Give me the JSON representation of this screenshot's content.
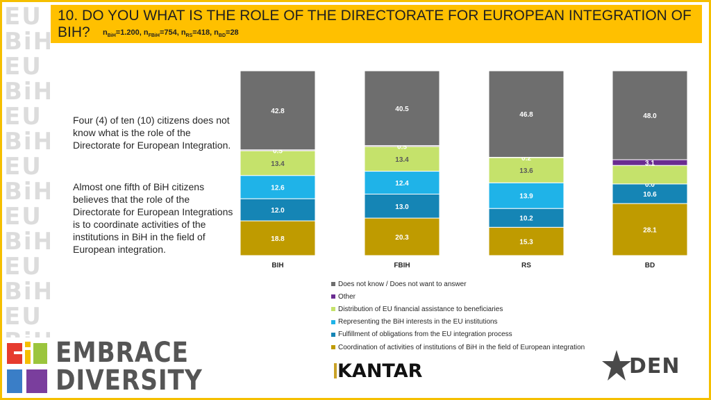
{
  "title": {
    "main": "10. DO YOU WHAT IS THE ROLE OF THE DIRECTORATE FOR EUROPEAN INTEGRATION OF BIH?",
    "sample_prefix_1": "n",
    "sample_sub_1": "BiH",
    "sample_val_1": "=1.200, n",
    "sample_sub_2": "FBiH",
    "sample_val_2": "=754, n",
    "sample_sub_3": "RS",
    "sample_val_3": "=418, n",
    "sample_sub_4": "BD",
    "sample_val_4": "=28"
  },
  "commentary": {
    "p1": "Four (4) of ten (10) citizens does not know what is the role of the Directorate for European Integration.",
    "p2": "Almost one fifth of BiH citizens believes that the role of the Directorate for European Integrations is to coordinate activities of the institutions in BiH in the field of European integration."
  },
  "chart_data": {
    "type": "bar",
    "stacked": true,
    "categories": [
      "BIH",
      "FBIH",
      "RS",
      "BD"
    ],
    "series": [
      {
        "name": "Coordination of activities of institutions of BiH in the field of European integration",
        "color": "#bf9b00",
        "values": [
          18.8,
          20.3,
          15.3,
          28.1
        ]
      },
      {
        "name": "Fulfillment of obligations from the EU integration process",
        "color": "#1585b5",
        "values": [
          12.0,
          13.0,
          10.2,
          10.6
        ]
      },
      {
        "name": "Representing the BiH interests in the EU institutions",
        "color": "#1fb3e8",
        "values": [
          12.6,
          12.4,
          13.9,
          0.0
        ]
      },
      {
        "name": "Distribution of EU financial assistance to beneficiaries",
        "color": "#c5e26b",
        "values": [
          13.4,
          13.4,
          13.6,
          10.0
        ]
      },
      {
        "name": "Other",
        "color": "#6a2c91",
        "values": [
          0.5,
          0.5,
          0.2,
          3.1
        ]
      },
      {
        "name": "Does not know / Does not want to answer",
        "color": "#6e6e6e",
        "values": [
          42.8,
          40.5,
          46.8,
          48.0
        ]
      }
    ],
    "data_labels": [
      [
        "18.8",
        "20.3",
        "15.3",
        "28.1"
      ],
      [
        "12.0",
        "13.0",
        "10.2",
        "10.6"
      ],
      [
        "12.6",
        "12.4",
        "13.9",
        "0.0"
      ],
      [
        "13.4",
        "13.4",
        "13.6",
        ""
      ],
      [
        "0.5",
        "0.5",
        "0.2",
        "3.1"
      ],
      [
        "42.8",
        "40.5",
        "46.8",
        "48.0"
      ]
    ],
    "legend_order": [
      5,
      4,
      3,
      2,
      1,
      0
    ],
    "legend_position": "bottom",
    "ylim": [
      0,
      100
    ],
    "grid": false
  },
  "logos": {
    "embrace_line1": "EMBRACE",
    "embrace_line2": "DIVERSITY",
    "kantar": "KANTAR",
    "den": "DEN"
  }
}
